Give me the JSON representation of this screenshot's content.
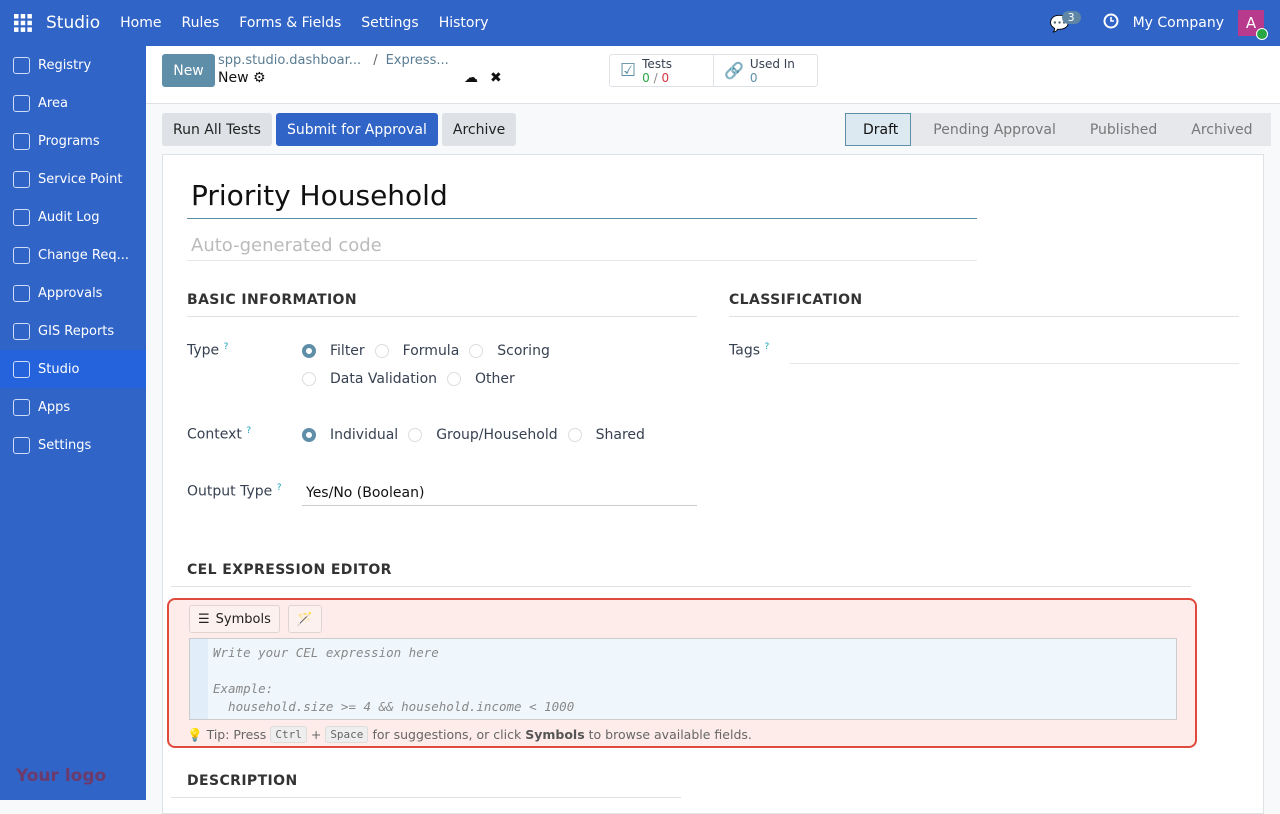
{
  "topbar": {
    "brand": "Studio",
    "menu": [
      "Home",
      "Rules",
      "Forms & Fields",
      "Settings",
      "History"
    ],
    "chat_count": "3",
    "company": "My Company",
    "avatar_letter": "A"
  },
  "sidebar": {
    "items": [
      {
        "label": "Registry",
        "icon": "registry-icon"
      },
      {
        "label": "Area",
        "icon": "area-icon"
      },
      {
        "label": "Programs",
        "icon": "programs-icon"
      },
      {
        "label": "Service Point",
        "icon": "service-point-icon"
      },
      {
        "label": "Audit Log",
        "icon": "audit-log-icon"
      },
      {
        "label": "Change Req...",
        "icon": "change-request-icon"
      },
      {
        "label": "Approvals",
        "icon": "approvals-icon"
      },
      {
        "label": "GIS Reports",
        "icon": "gis-reports-icon"
      },
      {
        "label": "Studio",
        "icon": "studio-icon",
        "active": true
      },
      {
        "label": "Apps",
        "icon": "apps-icon"
      },
      {
        "label": "Settings",
        "icon": "settings-icon"
      }
    ],
    "logo": "Your logo"
  },
  "control": {
    "new_label": "New",
    "breadcrumb": [
      "spp.studio.dashboar...",
      "Express..."
    ],
    "record": "New",
    "tests_label": "Tests",
    "tests_pass": "0",
    "tests_fail": "0",
    "used_in_label": "Used In",
    "used_in_value": "0"
  },
  "actions": {
    "run_tests": "Run All Tests",
    "submit": "Submit for Approval",
    "archive": "Archive"
  },
  "statusbar": {
    "stages": [
      "Draft",
      "Pending Approval",
      "Published",
      "Archived"
    ],
    "current": "Draft"
  },
  "form": {
    "name": "Priority Household",
    "code_placeholder": "Auto-generated code",
    "basic_info": "BASIC INFORMATION",
    "classification": "CLASSIFICATION",
    "type_label": "Type",
    "type_options": [
      "Filter",
      "Formula",
      "Scoring",
      "Data Validation",
      "Other"
    ],
    "type_selected": "Filter",
    "context_label": "Context",
    "context_options": [
      "Individual",
      "Group/Household",
      "Shared"
    ],
    "context_selected": "Individual",
    "output_label": "Output Type",
    "output_value": "Yes/No (Boolean)",
    "tags_label": "Tags",
    "help": "?",
    "cel_header": "CEL EXPRESSION EDITOR",
    "symbols_label": "Symbols",
    "cel_placeholder": "Write your CEL expression here\n\nExample:\n  household.size >= 4 && household.income < 1000",
    "tip_prefix": "Tip: Press",
    "tip_key1": "Ctrl",
    "tip_plus": "+",
    "tip_key2": "Space",
    "tip_mid": "for suggestions, or click",
    "tip_bold": "Symbols",
    "tip_end": "to browse available fields.",
    "description": "DESCRIPTION"
  },
  "colors": {
    "brand": "#3164c7",
    "accent": "#5f8ea9",
    "error_border": "#e04a3c",
    "pass": "#28a745",
    "fail": "#dc3545"
  }
}
